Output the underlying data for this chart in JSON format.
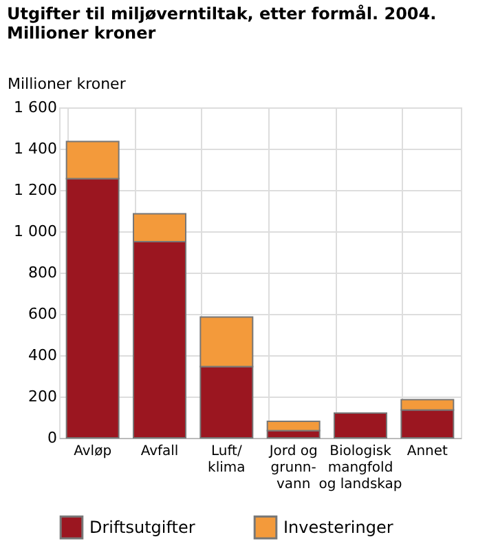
{
  "chart_data": {
    "type": "bar",
    "title": "Utgifter til miljøverntiltak, etter formål. 2004. Millioner kroner",
    "ylabel": "Millioner kroner",
    "categories": [
      "Avløp",
      "Avfall",
      "Luft/\nklima",
      "Jord og\ngrunn-\nvann",
      "Biologisk\nmangfold\nog landskap",
      "Annet"
    ],
    "series": [
      {
        "name": "Driftsutgifter",
        "color": "#9b1620",
        "values": [
          1255,
          950,
          345,
          35,
          120,
          135
        ]
      },
      {
        "name": "Investeringer",
        "color": "#f39a3b",
        "values": [
          180,
          135,
          240,
          45,
          null,
          50
        ]
      }
    ],
    "stacked": true,
    "ylim": [
      0,
      1600
    ],
    "yticks": [
      0,
      200,
      400,
      600,
      800,
      {
        "value": 1000,
        "label": "1 000"
      },
      {
        "value": 1200,
        "label": "1 200"
      },
      {
        "value": 1400,
        "label": "1 400"
      },
      {
        "value": 1600,
        "label": "1 600"
      }
    ],
    "grid": true,
    "legend": "bottom"
  }
}
